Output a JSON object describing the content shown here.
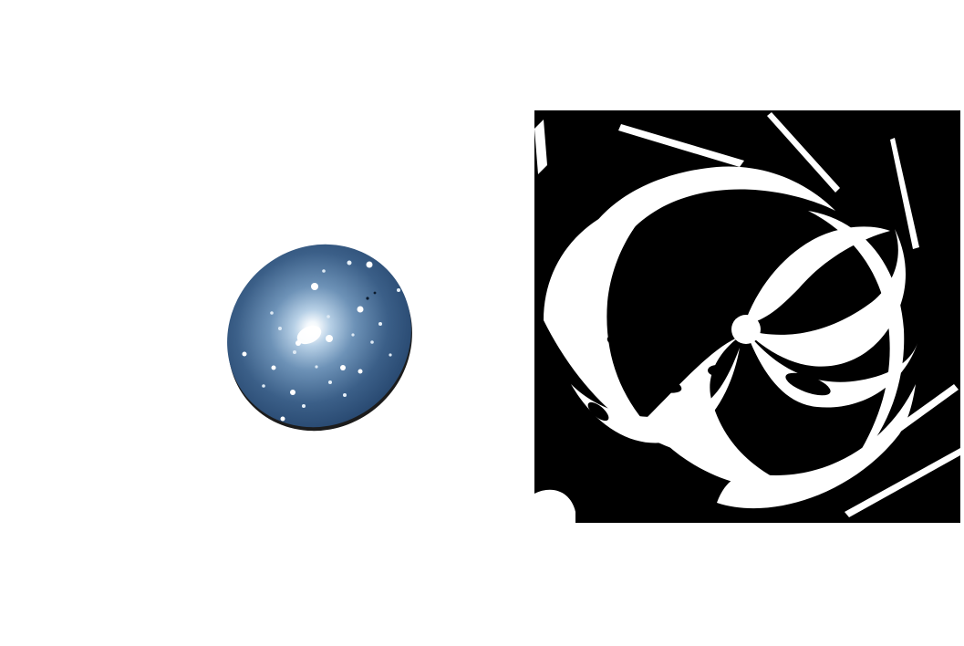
{
  "figure": {
    "panels": [
      {
        "id": "galaxy-image",
        "kind": "elliptical-galaxy-photo",
        "colors": {
          "background": "#2d4f78",
          "core": "#ffffff",
          "halo": "#9fc0dc",
          "rim": "#1a1a1a"
        }
      },
      {
        "id": "spiral-binary-image",
        "kind": "thresholded-spiral-galaxy",
        "colors": {
          "background": "#000000",
          "arms": "#ffffff"
        }
      }
    ]
  }
}
